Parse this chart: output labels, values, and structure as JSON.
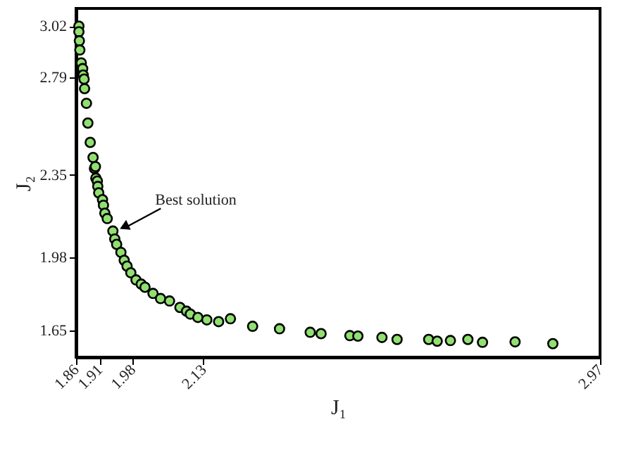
{
  "chart_data": {
    "type": "scatter",
    "xlabel": "J₁",
    "ylabel": "J₂",
    "x": [
      1.866,
      1.866,
      1.867,
      1.868,
      1.871,
      1.874,
      1.875,
      1.877,
      1.878,
      1.882,
      1.885,
      1.89,
      1.896,
      1.899,
      1.901,
      1.902,
      1.905,
      1.906,
      1.908,
      1.916,
      1.918,
      1.921,
      1.926,
      1.938,
      1.942,
      1.946,
      1.955,
      1.962,
      1.968,
      1.976,
      1.987,
      1.998,
      2.006,
      2.023,
      2.039,
      2.058,
      2.08,
      2.094,
      2.102,
      2.118,
      2.137,
      2.162,
      2.187,
      2.234,
      2.291,
      2.356,
      2.379,
      2.44,
      2.457,
      2.508,
      2.54,
      2.607,
      2.625,
      2.653,
      2.69,
      2.721,
      2.79,
      2.87
    ],
    "series": [
      {
        "color": "#90e070",
        "marker": "circle",
        "values": [
          3.02,
          2.995,
          2.954,
          2.913,
          2.855,
          2.829,
          2.8,
          2.782,
          2.739,
          2.673,
          2.584,
          2.497,
          2.429,
          2.38,
          2.388,
          2.336,
          2.323,
          2.299,
          2.27,
          2.239,
          2.214,
          2.178,
          2.154,
          2.098,
          2.062,
          2.038,
          2.002,
          1.966,
          1.94,
          1.91,
          1.878,
          1.859,
          1.845,
          1.817,
          1.794,
          1.783,
          1.754,
          1.737,
          1.724,
          1.709,
          1.698,
          1.69,
          1.703,
          1.669,
          1.658,
          1.642,
          1.636,
          1.627,
          1.625,
          1.619,
          1.61,
          1.61,
          1.602,
          1.605,
          1.61,
          1.597,
          1.599,
          1.591
        ]
      }
    ],
    "xlim": [
      1.86,
      2.97
    ],
    "ylim": [
      1.53,
      3.1
    ],
    "xticks": [
      1.86,
      1.91,
      1.98,
      2.13,
      2.97
    ],
    "yticks": [
      1.65,
      1.98,
      2.35,
      2.79,
      3.02
    ],
    "annotations": [
      {
        "text": "Best solution",
        "x": 1.938,
        "y": 2.098
      }
    ],
    "grid": false,
    "legend": false
  }
}
